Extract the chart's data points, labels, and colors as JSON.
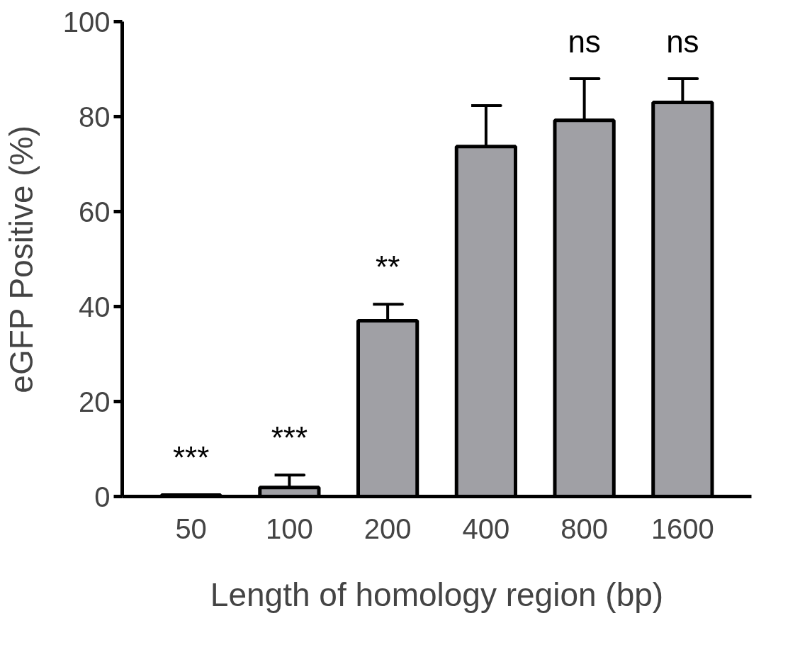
{
  "chart_data": {
    "type": "bar",
    "xlabel": "Length of homology region (bp)",
    "ylabel": "eGFP Positive (%)",
    "categories": [
      "50",
      "100",
      "200",
      "400",
      "800",
      "1600"
    ],
    "values": [
      0.3,
      1.9,
      37,
      73.7,
      79.2,
      83
    ],
    "errors": [
      null,
      [
        1.9,
        4.5
      ],
      [
        37,
        40.5
      ],
      [
        73.7,
        82.3
      ],
      [
        79.2,
        88
      ],
      [
        83,
        88
      ]
    ],
    "color": "#a0a0a5",
    "ylim": [
      0,
      100
    ],
    "yticks": [
      0,
      20,
      40,
      60,
      80,
      100
    ],
    "grid": false,
    "value_labels": [
      "***",
      "***",
      "**",
      null,
      "ns",
      "ns"
    ]
  }
}
